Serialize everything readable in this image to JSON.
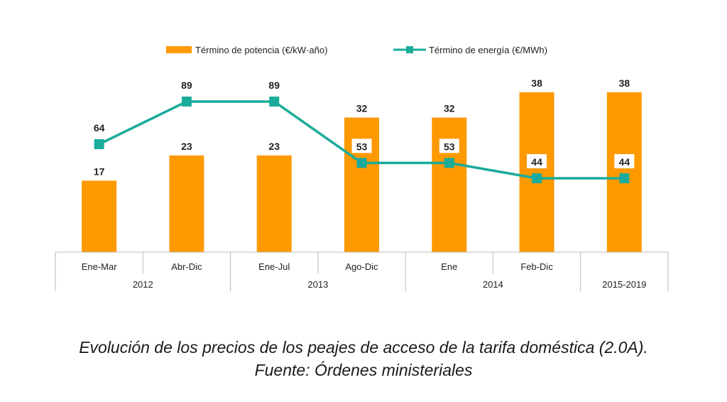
{
  "chart_data": {
    "type": "bar",
    "categories": [
      "Ene-Mar",
      "Abr-Dic",
      "Ene-Jul",
      "Ago-Dic",
      "Ene",
      "Feb-Dic",
      ""
    ],
    "groups": [
      {
        "label": "2012",
        "span": 2
      },
      {
        "label": "2013",
        "span": 2
      },
      {
        "label": "2014",
        "span": 2
      },
      {
        "label": "2015-2019",
        "span": 1
      }
    ],
    "series": [
      {
        "name": "Término de potencia (€/kW·año)",
        "kind": "bar",
        "color": "#ff9900",
        "values": [
          17,
          23,
          23,
          32,
          32,
          38,
          38
        ]
      },
      {
        "name": "Término de energía (€/MWh)",
        "kind": "line",
        "color": "#1aab9b",
        "values": [
          64,
          89,
          89,
          53,
          53,
          44,
          44
        ]
      }
    ],
    "grid": false,
    "legend": "top-center"
  },
  "caption": {
    "line1": "Evolución de los precios de los peajes de acceso de la tarifa doméstica (2.0A).",
    "line2": "Fuente: Órdenes ministeriales"
  }
}
